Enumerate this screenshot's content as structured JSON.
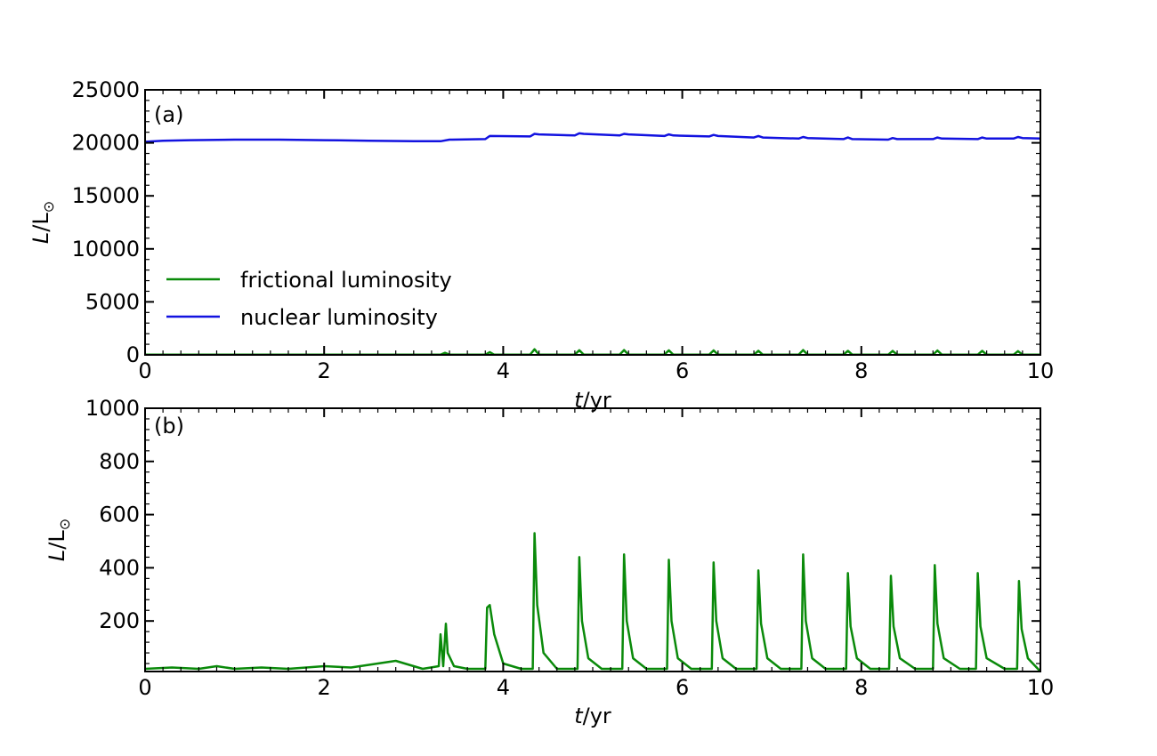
{
  "colors": {
    "frictional": "#0a8a0a",
    "nuclear": "#1212e0"
  },
  "chart_data": [
    {
      "type": "line",
      "panel_label": "(a)",
      "xlabel_italic": "t",
      "xlabel_unit": "/yr",
      "ylabel_italic": "L",
      "ylabel_unit": "/L",
      "ylabel_sub": "⊙",
      "xlim": [
        0,
        10
      ],
      "ylim": [
        0,
        25000
      ],
      "xticks": [
        0,
        2,
        4,
        6,
        8,
        10
      ],
      "yticks": [
        0,
        5000,
        10000,
        15000,
        20000,
        25000
      ],
      "legend_position": "center-left",
      "series": [
        {
          "name": "frictional luminosity",
          "color": "#0a8a0a",
          "x": [
            0,
            3.3,
            3.35,
            3.4,
            3.8,
            3.85,
            3.9,
            4.3,
            4.35,
            4.4,
            4.8,
            4.85,
            4.9,
            5.3,
            5.35,
            5.4,
            5.8,
            5.85,
            5.9,
            6.3,
            6.35,
            6.4,
            6.8,
            6.85,
            6.9,
            7.3,
            7.35,
            7.4,
            7.8,
            7.85,
            7.9,
            8.3,
            8.35,
            8.4,
            8.8,
            8.85,
            8.9,
            9.3,
            9.35,
            9.4,
            9.7,
            9.75,
            9.8,
            10
          ],
          "y": [
            20,
            20,
            190,
            20,
            20,
            260,
            20,
            20,
            530,
            20,
            20,
            440,
            20,
            20,
            450,
            20,
            20,
            430,
            20,
            20,
            420,
            20,
            20,
            390,
            20,
            20,
            450,
            20,
            20,
            380,
            20,
            20,
            370,
            20,
            20,
            410,
            20,
            20,
            380,
            20,
            20,
            350,
            20,
            20
          ]
        },
        {
          "name": "nuclear luminosity",
          "color": "#1212e0",
          "x": [
            0,
            0.2,
            0.5,
            1.0,
            1.5,
            2.0,
            2.5,
            3.0,
            3.3,
            3.4,
            3.8,
            3.85,
            4.3,
            4.35,
            4.4,
            4.8,
            4.85,
            4.9,
            5.3,
            5.35,
            5.4,
            5.8,
            5.85,
            5.9,
            6.3,
            6.35,
            6.4,
            6.8,
            6.85,
            6.9,
            7.3,
            7.35,
            7.4,
            7.8,
            7.85,
            7.9,
            8.3,
            8.35,
            8.4,
            8.8,
            8.85,
            8.9,
            9.3,
            9.35,
            9.4,
            9.7,
            9.75,
            9.8,
            10
          ],
          "y": [
            20100,
            20200,
            20250,
            20300,
            20300,
            20250,
            20200,
            20150,
            20150,
            20300,
            20350,
            20650,
            20600,
            20850,
            20800,
            20700,
            20900,
            20850,
            20700,
            20850,
            20800,
            20650,
            20800,
            20700,
            20600,
            20750,
            20650,
            20500,
            20650,
            20500,
            20400,
            20550,
            20450,
            20350,
            20500,
            20350,
            20300,
            20450,
            20350,
            20350,
            20500,
            20400,
            20350,
            20500,
            20400,
            20400,
            20550,
            20450,
            20400
          ]
        }
      ]
    },
    {
      "type": "line",
      "panel_label": "(b)",
      "xlabel_italic": "t",
      "xlabel_unit": "/yr",
      "ylabel_italic": "L",
      "ylabel_unit": "/L",
      "ylabel_sub": "⊙",
      "xlim": [
        0,
        10
      ],
      "ylim": [
        10,
        1000
      ],
      "xticks": [
        0,
        2,
        4,
        6,
        8,
        10
      ],
      "yticks": [
        200,
        400,
        600,
        800,
        1000
      ],
      "series": [
        {
          "name": "frictional luminosity",
          "color": "#0a8a0a",
          "x": [
            0,
            0.3,
            0.6,
            0.8,
            1.0,
            1.3,
            1.6,
            2.0,
            2.3,
            2.5,
            2.8,
            2.9,
            3.1,
            3.28,
            3.3,
            3.33,
            3.36,
            3.38,
            3.45,
            3.6,
            3.8,
            3.82,
            3.85,
            3.9,
            4.0,
            4.2,
            4.33,
            4.35,
            4.38,
            4.45,
            4.6,
            4.83,
            4.85,
            4.88,
            4.95,
            5.1,
            5.33,
            5.35,
            5.38,
            5.45,
            5.6,
            5.83,
            5.85,
            5.88,
            5.95,
            6.1,
            6.33,
            6.35,
            6.38,
            6.45,
            6.6,
            6.83,
            6.85,
            6.88,
            6.95,
            7.1,
            7.33,
            7.35,
            7.38,
            7.45,
            7.6,
            7.83,
            7.85,
            7.88,
            7.95,
            8.1,
            8.31,
            8.33,
            8.36,
            8.43,
            8.6,
            8.8,
            8.82,
            8.85,
            8.92,
            9.1,
            9.28,
            9.3,
            9.33,
            9.4,
            9.6,
            9.74,
            9.76,
            9.79,
            9.86,
            10
          ],
          "y": [
            20,
            25,
            20,
            30,
            20,
            25,
            20,
            30,
            25,
            35,
            50,
            40,
            20,
            30,
            150,
            30,
            190,
            80,
            30,
            20,
            20,
            250,
            260,
            150,
            40,
            20,
            20,
            530,
            260,
            80,
            20,
            20,
            440,
            200,
            60,
            20,
            20,
            450,
            200,
            60,
            20,
            20,
            430,
            200,
            60,
            20,
            20,
            420,
            200,
            60,
            20,
            20,
            390,
            190,
            60,
            20,
            20,
            450,
            200,
            60,
            20,
            20,
            380,
            180,
            60,
            20,
            20,
            370,
            180,
            60,
            20,
            20,
            410,
            190,
            60,
            20,
            20,
            380,
            180,
            60,
            20,
            20,
            350,
            170,
            60,
            10
          ]
        }
      ]
    }
  ]
}
